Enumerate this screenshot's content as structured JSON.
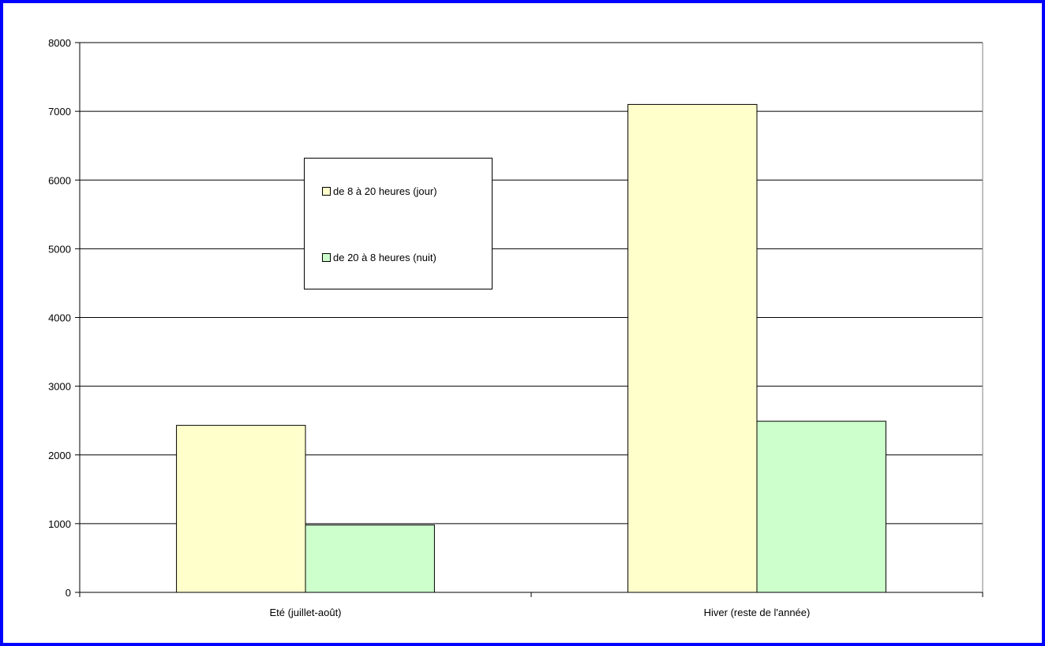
{
  "chart_data": {
    "type": "bar",
    "categories": [
      "Eté (juillet-août)",
      "Hiver (reste de l'année)"
    ],
    "series": [
      {
        "name": "de 8 à 20 heures (jour)",
        "values": [
          2430,
          7100
        ],
        "color": "#FFFFCC"
      },
      {
        "name": "de 20 à 8 heures (nuit)",
        "values": [
          980,
          2490
        ],
        "color": "#CCFFCC"
      }
    ],
    "ylim": [
      0,
      8000
    ],
    "yticks": [
      "0",
      "1000",
      "2000",
      "3000",
      "4000",
      "5000",
      "6000",
      "7000",
      "8000"
    ],
    "grid": true,
    "legend_position": "upper-left-inside",
    "frame_color": "#0000FF"
  }
}
